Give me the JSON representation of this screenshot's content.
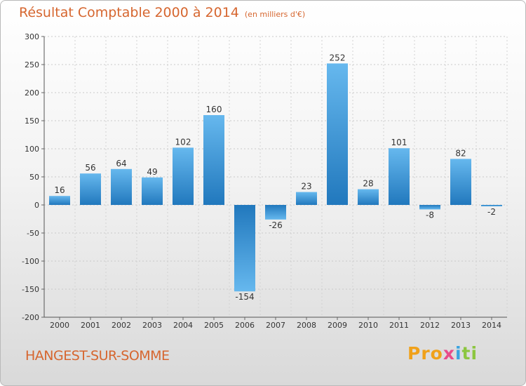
{
  "title": {
    "main": "Résultat Comptable 2000 à 2014",
    "unit": "(en milliers d'€)"
  },
  "footer": {
    "commune": "HANGEST-SUR-SOMME",
    "logo": [
      "Pro",
      "x",
      "i",
      "ti"
    ]
  },
  "colors": {
    "title": "#d6662f",
    "bar_light": "#66b8ee",
    "bar_dark": "#2178bd"
  },
  "chart_data": {
    "type": "bar",
    "categories": [
      "2000",
      "2001",
      "2002",
      "2003",
      "2004",
      "2005",
      "2006",
      "2007",
      "2008",
      "2009",
      "2010",
      "2011",
      "2012",
      "2013",
      "2014"
    ],
    "values": [
      16,
      56,
      64,
      49,
      102,
      160,
      -154,
      -26,
      23,
      252,
      28,
      101,
      -8,
      82,
      -2
    ],
    "ylim": [
      -200,
      300
    ],
    "yticks": [
      -200,
      -150,
      -100,
      -50,
      0,
      50,
      100,
      150,
      200,
      250,
      300
    ],
    "grid": true,
    "xlabel": "",
    "ylabel": ""
  }
}
